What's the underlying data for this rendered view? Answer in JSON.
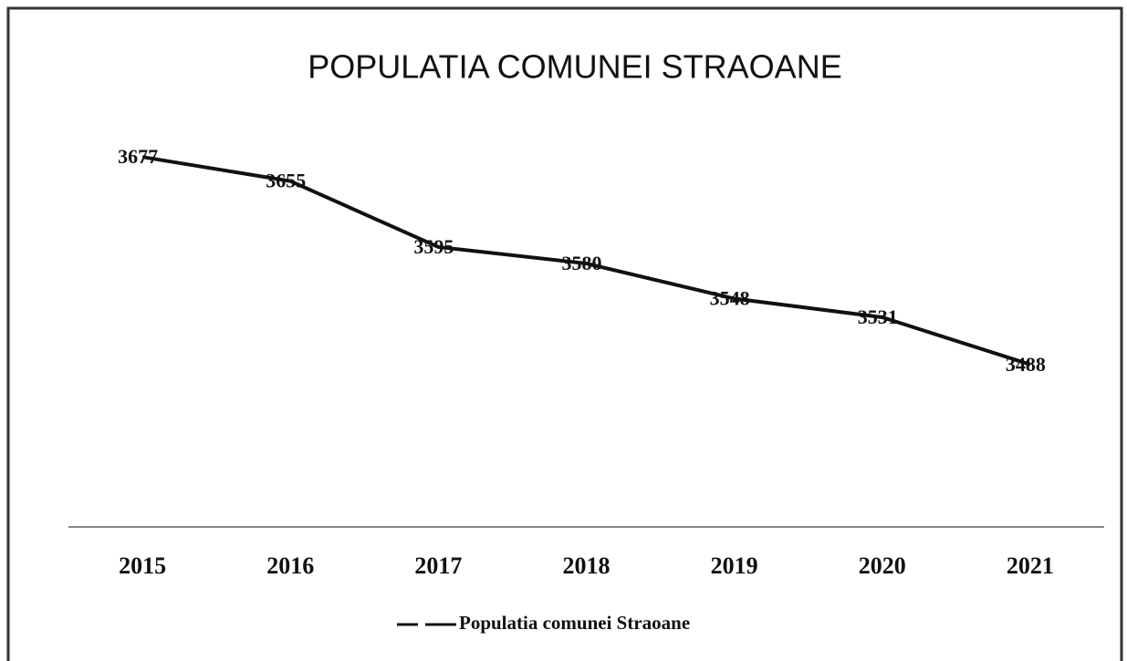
{
  "chart_data": {
    "type": "line",
    "title": "POPULATIA COMUNEI STRAOANE",
    "categories": [
      "2015",
      "2016",
      "2017",
      "2018",
      "2019",
      "2020",
      "2021"
    ],
    "series": [
      {
        "name": "Populatia comunei Straoane",
        "color": "#111111",
        "values": [
          3677,
          3655,
          3595,
          3580,
          3548,
          3531,
          3488
        ]
      }
    ],
    "ylim": [
      3340,
      3700
    ],
    "legend": "bottom"
  }
}
